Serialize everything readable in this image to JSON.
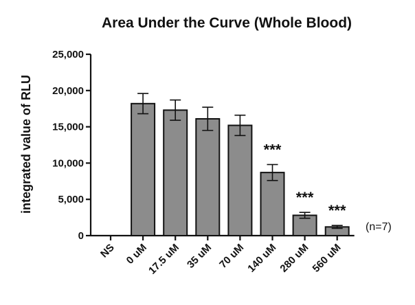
{
  "chart_data": {
    "type": "bar",
    "title": "Area Under the Curve (Whole Blood)",
    "xlabel": "",
    "ylabel": "integrated value of RLU",
    "ylim": [
      0,
      25000
    ],
    "yticks": [
      0,
      5000,
      10000,
      15000,
      20000,
      25000
    ],
    "ytick_labels": [
      "0",
      "5,000",
      "10,000",
      "15,000",
      "20,000",
      "25,000"
    ],
    "categories": [
      "NS",
      "0 uM",
      "17.5 uM",
      "35 uM",
      "70 uM",
      "140 uM",
      "280 uM",
      "560 uM"
    ],
    "values": [
      0,
      18200,
      17300,
      16100,
      15200,
      8700,
      2800,
      1200
    ],
    "errors": [
      0,
      1400,
      1400,
      1600,
      1400,
      1100,
      400,
      200
    ],
    "significance": [
      "",
      "",
      "",
      "",
      "",
      "***",
      "***",
      "***"
    ],
    "annotation": "(n=7)",
    "bar_color": "#8c8c8c",
    "bar_edge_color": "#111111",
    "grid": false,
    "legend": "none"
  }
}
